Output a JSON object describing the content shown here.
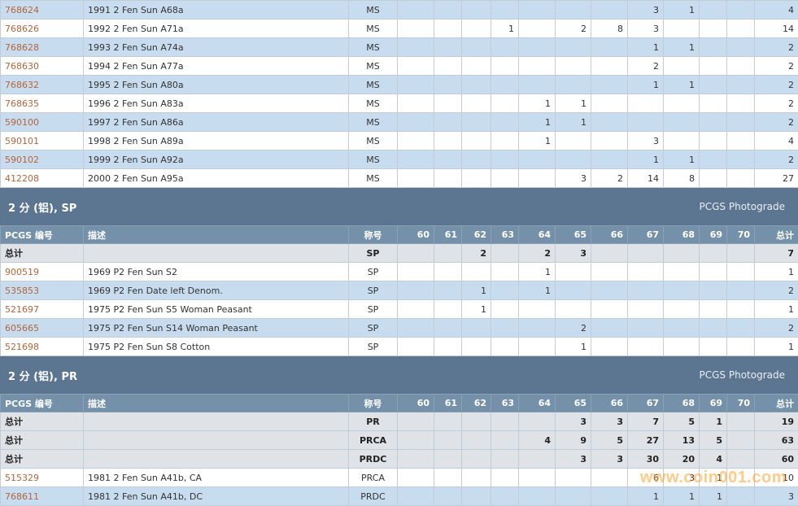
{
  "colors": {
    "link": "#b5653a",
    "header_bg": "#7591a9",
    "section_bg": "#5c7590",
    "row_alt": "#c8dcef",
    "total_bg": "#dfe2e6"
  },
  "header_labels": [
    "PCGS 编号",
    "描述",
    "称号",
    "60",
    "61",
    "62",
    "63",
    "64",
    "65",
    "66",
    "67",
    "68",
    "69",
    "70",
    "总计"
  ],
  "ms_rows": [
    {
      "code": "768624",
      "desc": "1991 2 Fen Sun A68a",
      "des": "MS",
      "g": [
        "",
        "",
        "",
        "",
        "",
        "",
        "",
        "3",
        "1",
        "",
        ""
      ],
      "total": "4"
    },
    {
      "code": "768626",
      "desc": "1992 2 Fen Sun A71a",
      "des": "MS",
      "g": [
        "",
        "",
        "",
        "1",
        "",
        "2",
        "8",
        "3",
        "",
        "",
        ""
      ],
      "total": "14"
    },
    {
      "code": "768628",
      "desc": "1993 2 Fen Sun A74a",
      "des": "MS",
      "g": [
        "",
        "",
        "",
        "",
        "",
        "",
        "",
        "1",
        "1",
        "",
        ""
      ],
      "total": "2"
    },
    {
      "code": "768630",
      "desc": "1994 2 Fen Sun A77a",
      "des": "MS",
      "g": [
        "",
        "",
        "",
        "",
        "",
        "",
        "",
        "2",
        "",
        "",
        ""
      ],
      "total": "2"
    },
    {
      "code": "768632",
      "desc": "1995 2 Fen Sun A80a",
      "des": "MS",
      "g": [
        "",
        "",
        "",
        "",
        "",
        "",
        "",
        "1",
        "1",
        "",
        ""
      ],
      "total": "2"
    },
    {
      "code": "768635",
      "desc": "1996 2 Fen Sun A83a",
      "des": "MS",
      "g": [
        "",
        "",
        "",
        "",
        "1",
        "1",
        "",
        "",
        "",
        "",
        ""
      ],
      "total": "2"
    },
    {
      "code": "590100",
      "desc": "1997 2 Fen Sun A86a",
      "des": "MS",
      "g": [
        "",
        "",
        "",
        "",
        "1",
        "1",
        "",
        "",
        "",
        "",
        ""
      ],
      "total": "2"
    },
    {
      "code": "590101",
      "desc": "1998 2 Fen Sun A89a",
      "des": "MS",
      "g": [
        "",
        "",
        "",
        "",
        "1",
        "",
        "",
        "3",
        "",
        "",
        ""
      ],
      "total": "4"
    },
    {
      "code": "590102",
      "desc": "1999 2 Fen Sun A92a",
      "des": "MS",
      "g": [
        "",
        "",
        "",
        "",
        "",
        "",
        "",
        "1",
        "1",
        "",
        ""
      ],
      "total": "2"
    },
    {
      "code": "412208",
      "desc": "2000 2 Fen Sun A95a",
      "des": "MS",
      "g": [
        "",
        "",
        "",
        "",
        "",
        "3",
        "2",
        "14",
        "8",
        "",
        ""
      ],
      "total": "27"
    }
  ],
  "sp_section": {
    "title": "2 分 (铝), SP",
    "link": "PCGS Photograde",
    "totals": [
      {
        "label": "总计",
        "des": "SP",
        "g": [
          "",
          "",
          "2",
          "",
          "2",
          "3",
          "",
          "",
          "",
          "",
          ""
        ],
        "total": "7"
      }
    ],
    "rows": [
      {
        "code": "900519",
        "desc": "1969 P2 Fen Sun S2",
        "des": "SP",
        "g": [
          "",
          "",
          "",
          "",
          "1",
          "",
          "",
          "",
          "",
          "",
          ""
        ],
        "total": "1"
      },
      {
        "code": "535853",
        "desc": "1969 P2 Fen Date left Denom.",
        "des": "SP",
        "g": [
          "",
          "",
          "1",
          "",
          "1",
          "",
          "",
          "",
          "",
          "",
          ""
        ],
        "total": "2"
      },
      {
        "code": "521697",
        "desc": "1975 P2 Fen Sun S5   Woman Peasant",
        "des": "SP",
        "g": [
          "",
          "",
          "1",
          "",
          "",
          "",
          "",
          "",
          "",
          "",
          ""
        ],
        "total": "1"
      },
      {
        "code": "605665",
        "desc": "1975 P2 Fen Sun S14   Woman Peasant",
        "des": "SP",
        "g": [
          "",
          "",
          "",
          "",
          "",
          "2",
          "",
          "",
          "",
          "",
          ""
        ],
        "total": "2"
      },
      {
        "code": "521698",
        "desc": "1975 P2 Fen Sun S8   Cotton",
        "des": "SP",
        "g": [
          "",
          "",
          "",
          "",
          "",
          "1",
          "",
          "",
          "",
          "",
          ""
        ],
        "total": "1"
      }
    ]
  },
  "pr_section": {
    "title": "2 分 (铝), PR",
    "link": "PCGS Photograde",
    "totals": [
      {
        "label": "总计",
        "des": "PR",
        "g": [
          "",
          "",
          "",
          "",
          "",
          "3",
          "3",
          "7",
          "5",
          "1",
          ""
        ],
        "total": "19"
      },
      {
        "label": "总计",
        "des": "PRCA",
        "g": [
          "",
          "",
          "",
          "",
          "4",
          "9",
          "5",
          "27",
          "13",
          "5",
          ""
        ],
        "total": "63"
      },
      {
        "label": "总计",
        "des": "PRDC",
        "g": [
          "",
          "",
          "",
          "",
          "",
          "3",
          "3",
          "30",
          "20",
          "4",
          ""
        ],
        "total": "60"
      }
    ],
    "rows": [
      {
        "code": "515329",
        "desc": "1981 2 Fen Sun A41b, CA",
        "des": "PRCA",
        "g": [
          "",
          "",
          "",
          "",
          "",
          "",
          "",
          "6",
          "3",
          "1",
          ""
        ],
        "total": "10"
      },
      {
        "code": "768611",
        "desc": "1981 2 Fen Sun A41b, DC",
        "des": "PRDC",
        "g": [
          "",
          "",
          "",
          "",
          "",
          "",
          "",
          "1",
          "1",
          "1",
          ""
        ],
        "total": "3"
      }
    ]
  },
  "watermark": "www.coin001.com"
}
